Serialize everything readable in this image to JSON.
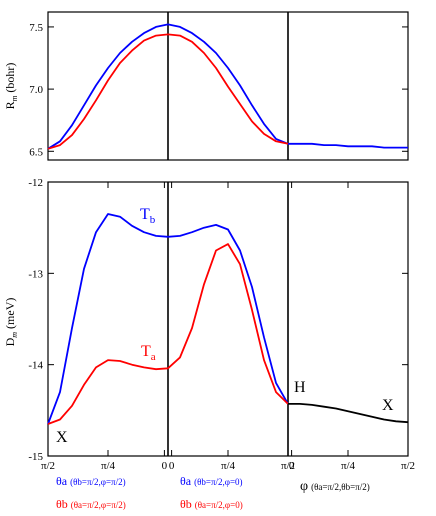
{
  "chart_data": [
    {
      "type": "line",
      "panel": "top",
      "ylabel": "R_m (bohr)",
      "ylabel_main": "R",
      "ylabel_sub": "m",
      "ylabel_rest": " (bohr)",
      "ylim": [
        6.43,
        7.62
      ],
      "yticks": [
        "6.5",
        "7.0",
        "7.5"
      ],
      "yticks_values": [
        6.5,
        7.0,
        7.5
      ],
      "series": [
        {
          "color": "#0000ff",
          "x": [
            0,
            0.1,
            0.2,
            0.3,
            0.4,
            0.5,
            0.6,
            0.7,
            0.8,
            0.9,
            1.0,
            1.1,
            1.2,
            1.3,
            1.4,
            1.5,
            1.6,
            1.7,
            1.8,
            1.9,
            2.0,
            2.1,
            2.2,
            2.3,
            2.4,
            2.5,
            2.6,
            2.7,
            2.8,
            2.9,
            3.0
          ],
          "y": [
            6.52,
            6.58,
            6.71,
            6.87,
            7.03,
            7.17,
            7.29,
            7.38,
            7.45,
            7.5,
            7.52,
            7.5,
            7.45,
            7.38,
            7.29,
            7.17,
            7.03,
            6.87,
            6.72,
            6.6,
            6.56,
            6.56,
            6.56,
            6.55,
            6.55,
            6.54,
            6.54,
            6.54,
            6.53,
            6.53,
            6.53
          ]
        },
        {
          "color": "#ff0000",
          "x": [
            0,
            0.1,
            0.2,
            0.3,
            0.4,
            0.5,
            0.6,
            0.7,
            0.8,
            0.9,
            1.0,
            1.1,
            1.2,
            1.3,
            1.4,
            1.5,
            1.6,
            1.7,
            1.8,
            1.9,
            2.0
          ],
          "y": [
            6.52,
            6.55,
            6.63,
            6.76,
            6.91,
            7.07,
            7.21,
            7.31,
            7.39,
            7.43,
            7.44,
            7.43,
            7.38,
            7.29,
            7.17,
            7.02,
            6.88,
            6.74,
            6.64,
            6.58,
            6.56
          ]
        }
      ]
    },
    {
      "type": "line",
      "panel": "bottom",
      "ylabel": "D_m (meV)",
      "ylabel_main": "D",
      "ylabel_sub": "m",
      "ylabel_rest": " (meV)",
      "ylim": [
        -15.0,
        -12.0
      ],
      "yticks": [
        "-12",
        "-13",
        "-14",
        "-15"
      ],
      "yticks_values": [
        -12,
        -13,
        -14,
        -15
      ],
      "xticks": [
        "π/2",
        "π/4",
        "0",
        "0",
        "π/4",
        "π/2",
        "0",
        "π/4",
        "π/2"
      ],
      "xticks_values": [
        0,
        0.5,
        0.97,
        1.03,
        1.5,
        2.0,
        2.03,
        2.5,
        3.0
      ],
      "annotations": [
        "H",
        "X",
        "X"
      ],
      "series": [
        {
          "name_main": "T",
          "name_sub": "b",
          "color": "#0000ff",
          "x": [
            0,
            0.1,
            0.2,
            0.3,
            0.4,
            0.5,
            0.6,
            0.7,
            0.8,
            0.9,
            1.0,
            1.1,
            1.2,
            1.3,
            1.4,
            1.5,
            1.6,
            1.7,
            1.8,
            1.9,
            2.0
          ],
          "y": [
            -14.65,
            -14.3,
            -13.6,
            -12.95,
            -12.55,
            -12.35,
            -12.38,
            -12.48,
            -12.55,
            -12.59,
            -12.6,
            -12.59,
            -12.55,
            -12.5,
            -12.47,
            -12.52,
            -12.75,
            -13.15,
            -13.7,
            -14.2,
            -14.43
          ]
        },
        {
          "name_main": "T",
          "name_sub": "a",
          "color": "#ff0000",
          "x": [
            0,
            0.1,
            0.2,
            0.3,
            0.4,
            0.5,
            0.6,
            0.7,
            0.8,
            0.9,
            1.0,
            1.1,
            1.2,
            1.3,
            1.4,
            1.5,
            1.6,
            1.7,
            1.8,
            1.9,
            2.0
          ],
          "y": [
            -14.65,
            -14.6,
            -14.45,
            -14.22,
            -14.03,
            -13.95,
            -13.96,
            -14.0,
            -14.03,
            -14.05,
            -14.04,
            -13.92,
            -13.6,
            -13.12,
            -12.75,
            -12.68,
            -12.9,
            -13.4,
            -13.95,
            -14.3,
            -14.43
          ]
        },
        {
          "color": "#000000",
          "x": [
            2.0,
            2.1,
            2.2,
            2.3,
            2.4,
            2.5,
            2.6,
            2.7,
            2.8,
            2.9,
            3.0
          ],
          "y": [
            -14.43,
            -14.43,
            -14.44,
            -14.46,
            -14.48,
            -14.51,
            -14.54,
            -14.57,
            -14.6,
            -14.62,
            -14.63
          ]
        }
      ]
    }
  ],
  "legend": {
    "row1": {
      "left": {
        "main": "θa",
        "detail": "(θb=π/2,φ=π/2)",
        "color": "#0000ff"
      },
      "right": {
        "main": "θa",
        "detail": "(θb=π/2,φ=0)",
        "color": "#0000ff"
      },
      "phi": {
        "main": "φ",
        "detail": "(θa=π/2,θb=π/2)",
        "color": "#000000"
      }
    },
    "row2": {
      "left": {
        "main": "θb",
        "detail": "(θa=π/2,φ=π/2)",
        "color": "#ff0000"
      },
      "right": {
        "main": "θb",
        "detail": "(θa=π/2,φ=0)",
        "color": "#ff0000"
      }
    }
  }
}
